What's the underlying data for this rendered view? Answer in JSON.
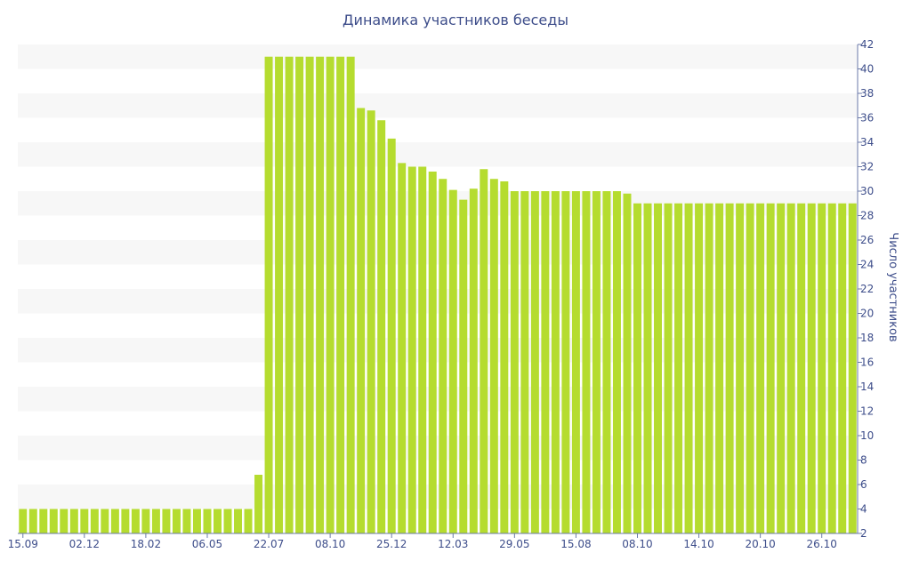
{
  "chart_data": {
    "type": "bar",
    "title": "Динамика участников беседы",
    "xlabel": "",
    "ylabel": "Число участников",
    "ylim": [
      2,
      42
    ],
    "yticks": [
      2,
      4,
      6,
      8,
      10,
      12,
      14,
      16,
      18,
      20,
      22,
      24,
      26,
      28,
      30,
      32,
      34,
      36,
      38,
      40,
      42
    ],
    "y_axis_side": "right",
    "grid": "alternating horizontal bands",
    "x_tick_labels": [
      "15.09",
      "02.12",
      "18.02",
      "06.05",
      "22.07",
      "08.10",
      "25.12",
      "12.03",
      "29.05",
      "15.08",
      "08.10",
      "14.10",
      "20.10",
      "26.10"
    ],
    "x_tick_indices": [
      0,
      6,
      12,
      18,
      24,
      30,
      36,
      42,
      48,
      54,
      60,
      66,
      72,
      78
    ],
    "bar_color": "#b5dc2f",
    "values": [
      4,
      4,
      4,
      4,
      4,
      4,
      4,
      4,
      4,
      4,
      4,
      4,
      4,
      4,
      4,
      4,
      4,
      4,
      4,
      4,
      4,
      4,
      4,
      6.8,
      41,
      41,
      41,
      41,
      41,
      41,
      41,
      41,
      41,
      36.8,
      36.6,
      35.8,
      34.3,
      32.3,
      32,
      32,
      31.6,
      31,
      30.1,
      29.3,
      30.2,
      31.8,
      31,
      30.8,
      30,
      30,
      30,
      30,
      30,
      30,
      30,
      30,
      30,
      30,
      30,
      29.8,
      29,
      29,
      29,
      29,
      29,
      29,
      29,
      29,
      29,
      29,
      29,
      29,
      29,
      29,
      29,
      29,
      29,
      29,
      29,
      29,
      29,
      29
    ]
  }
}
